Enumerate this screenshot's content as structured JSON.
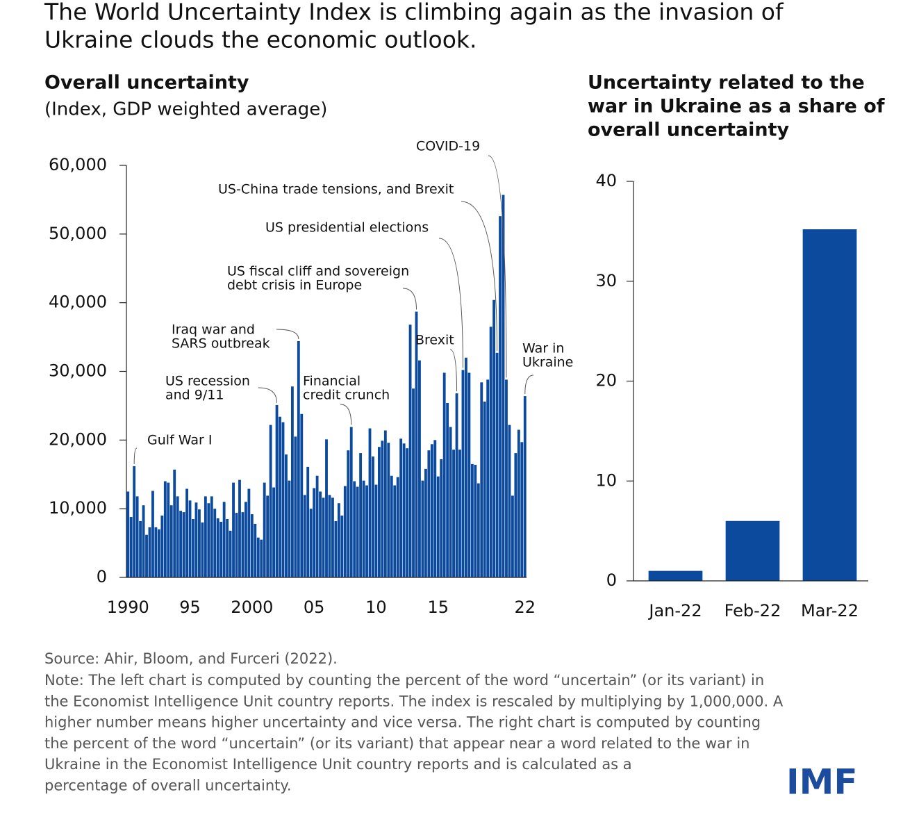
{
  "title": [
    "The World Uncertainty Index is climbing again as the invasion of",
    "Ukraine clouds the economic outlook."
  ],
  "chart_data": [
    {
      "type": "bar",
      "title": "Overall uncertainty",
      "subtitle": "(Index, GDP weighted average)",
      "color": "#0b4a9c",
      "categories": [
        "1990",
        null,
        null,
        null,
        null,
        null,
        null,
        null,
        null,
        null,
        null,
        null,
        null,
        null,
        null,
        null,
        null,
        null,
        null,
        null,
        "95",
        null,
        null,
        null,
        null,
        null,
        null,
        null,
        null,
        null,
        null,
        null,
        null,
        null,
        null,
        null,
        null,
        null,
        null,
        null,
        "2000",
        null,
        null,
        null,
        null,
        null,
        null,
        null,
        null,
        null,
        null,
        null,
        null,
        null,
        null,
        null,
        null,
        null,
        null,
        null,
        "05",
        null,
        null,
        null,
        null,
        null,
        null,
        null,
        null,
        null,
        null,
        null,
        null,
        null,
        null,
        null,
        null,
        null,
        null,
        null,
        "10",
        null,
        null,
        null,
        null,
        null,
        null,
        null,
        null,
        null,
        null,
        null,
        null,
        null,
        null,
        null,
        null,
        null,
        null,
        null,
        "15",
        null,
        null,
        null,
        null,
        null,
        null,
        null,
        null,
        null,
        null,
        null,
        null,
        null,
        null,
        null,
        null,
        null,
        null,
        null,
        null,
        null,
        null,
        null,
        null,
        null,
        null,
        null,
        "22"
      ],
      "values": [
        12500,
        8800,
        16200,
        11800,
        8200,
        10500,
        6200,
        7300,
        12600,
        7300,
        7000,
        9000,
        14000,
        13800,
        10500,
        15700,
        11800,
        9700,
        9500,
        12900,
        11200,
        8500,
        10900,
        9900,
        8000,
        11800,
        10800,
        11800,
        10000,
        8600,
        8100,
        11000,
        8500,
        6800,
        13800,
        9400,
        14200,
        9500,
        11000,
        12900,
        9200,
        7800,
        5800,
        5500,
        13800,
        11900,
        22200,
        13100,
        25100,
        23400,
        22600,
        17900,
        14100,
        27800,
        20500,
        34400,
        23800,
        12000,
        16100,
        10000,
        13000,
        14800,
        12500,
        11600,
        20100,
        12000,
        11600,
        8200,
        10800,
        9000,
        13300,
        18500,
        21900,
        14000,
        13200,
        18100,
        14100,
        13400,
        21700,
        17600,
        13500,
        19000,
        19900,
        21400,
        19600,
        14800,
        13400,
        14600,
        20200,
        19500,
        18800,
        36800,
        27500,
        38700,
        31600,
        14100,
        15800,
        18500,
        19400,
        20000,
        14700,
        17200,
        29800,
        25400,
        21900,
        18600,
        26800,
        18600,
        30200,
        32000,
        29800,
        16500,
        16400,
        13700,
        28400,
        25600,
        28800,
        36500,
        40400,
        32700,
        52600,
        55700,
        28800,
        22200,
        11900,
        18100,
        21500,
        19700,
        26400
      ],
      "ylim": [
        0,
        60000
      ],
      "yticks": [
        0,
        {
          "value": 10000,
          "label": "10,000"
        },
        {
          "value": 20000,
          "label": "20,000"
        },
        {
          "value": 30000,
          "label": "30,000"
        },
        {
          "value": 40000,
          "label": "40,000"
        },
        {
          "value": 50000,
          "label": "50,000"
        },
        {
          "value": 60000,
          "label": "60,000"
        }
      ],
      "annotations": [
        [
          "Gulf War I"
        ],
        [
          "US recession",
          "and 9/11"
        ],
        [
          "Iraq war and",
          "SARS outbreak"
        ],
        [
          "US fiscal cliff and sovereign",
          "debt crisis in Europe"
        ],
        [
          "US presidential elections"
        ],
        [
          "US-China trade tensions, and Brexit"
        ],
        [
          "COVID-19"
        ],
        [
          "Brexit"
        ],
        [
          "Financial",
          "credit crunch"
        ],
        [
          "War in",
          "Ukraine"
        ]
      ]
    },
    {
      "type": "bar",
      "title": [
        "Uncertainty related to the",
        "war in Ukraine as a share of",
        "overall uncertainty"
      ],
      "color": "#0b4a9c",
      "categories": [
        "Jan-22",
        "Feb-22",
        "Mar-22"
      ],
      "values": [
        1.0,
        6.0,
        35.2
      ],
      "ylim": [
        0,
        40
      ],
      "yticks": [
        0,
        10,
        20,
        30,
        40
      ]
    }
  ],
  "source": "Source: Ahir, Bloom, and Furceri (2022).",
  "note": [
    "Note: The left chart is computed by counting the percent of the word “uncertain” (or its variant) in",
    "the Economist Intelligence Unit country reports. The index is rescaled by multiplying by 1,000,000. A",
    "higher number means higher uncertainty and vice versa. The right chart is computed by counting",
    "the percent of the word “uncertain” (or its variant) that appear near a word related to the war in",
    "Ukraine in the Economist Intelligence Unit country reports and is calculated as a",
    "percentage of overall uncertainty."
  ],
  "logo": "IMF"
}
